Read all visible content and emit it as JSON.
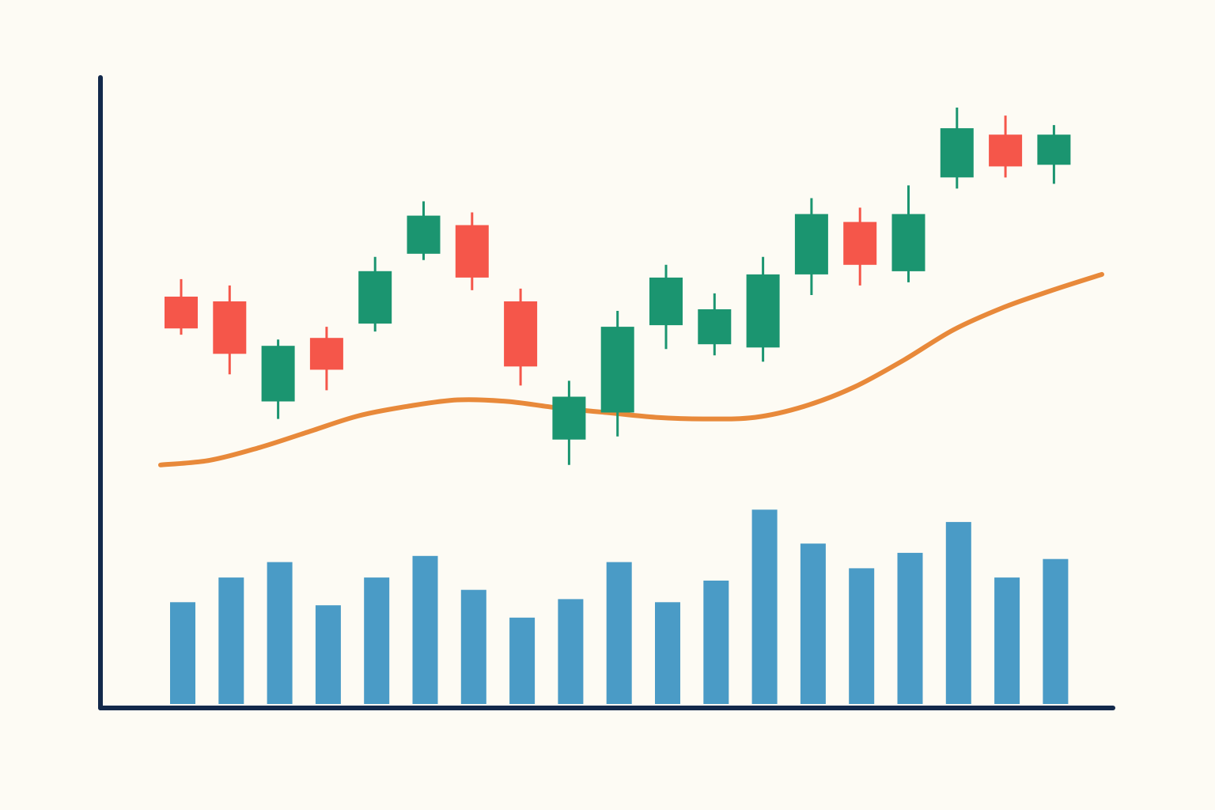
{
  "colors": {
    "background": "#fdfbf4",
    "axis": "#13294b",
    "bullish": "#1b9570",
    "bearish": "#f5564a",
    "moving_average": "#e8893a",
    "volume": "#4a9bc6"
  },
  "chart_data": {
    "type": "candlestick",
    "title": "",
    "xlabel": "",
    "ylabel": "",
    "ylim": [
      0,
      100
    ],
    "grid": false,
    "legend": "none",
    "tick_labels": false,
    "candles": [
      {
        "open": 65.0,
        "close": 55.0,
        "high": 70.5,
        "low": 53.0
      },
      {
        "open": 63.5,
        "close": 47.0,
        "high": 68.5,
        "low": 40.5
      },
      {
        "open": 32.0,
        "close": 49.5,
        "high": 51.5,
        "low": 26.5
      },
      {
        "open": 52.0,
        "close": 42.0,
        "high": 55.5,
        "low": 35.5
      },
      {
        "open": 56.5,
        "close": 73.0,
        "high": 77.5,
        "low": 54.0
      },
      {
        "open": 78.5,
        "close": 90.5,
        "high": 95.0,
        "low": 76.5
      },
      {
        "open": 87.5,
        "close": 71.0,
        "high": 91.5,
        "low": 67.0
      },
      {
        "open": 63.5,
        "close": 43.0,
        "high": 67.5,
        "low": 37.0
      },
      {
        "open": 20.0,
        "close": 33.5,
        "high": 38.5,
        "low": 12.0
      },
      {
        "open": 28.5,
        "close": 55.5,
        "high": 60.5,
        "low": 21.0
      },
      {
        "open": 56.0,
        "close": 71.0,
        "high": 75.0,
        "low": 48.5
      },
      {
        "open": 50.0,
        "close": 61.0,
        "high": 66.0,
        "low": 46.5
      },
      {
        "open": 49.0,
        "close": 72.0,
        "high": 77.5,
        "low": 44.5
      },
      {
        "open": 72.0,
        "close": 91.0,
        "high": 96.0,
        "low": 65.5
      },
      {
        "open": 88.5,
        "close": 75.0,
        "high": 93.0,
        "low": 68.5
      },
      {
        "open": 73.0,
        "close": 91.0,
        "high": 100.0,
        "low": 69.5
      },
      {
        "open": 102.5,
        "close": 118.0,
        "high": 124.5,
        "low": 99.0
      },
      {
        "open": 116.0,
        "close": 106.0,
        "high": 122.0,
        "low": 102.5
      },
      {
        "open": 106.5,
        "close": 116.0,
        "high": 119.0,
        "low": 100.5
      }
    ],
    "moving_average": [
      12.0,
      13.5,
      17.5,
      22.5,
      27.5,
      30.5,
      32.5,
      32.0,
      30.0,
      28.5,
      27.0,
      26.5,
      27.0,
      30.5,
      36.5,
      45.0,
      54.5,
      61.5,
      67.0,
      72.0
    ],
    "volume": [
      33,
      41,
      46,
      32,
      41,
      48,
      37,
      28,
      34,
      46,
      33,
      40,
      63,
      52,
      44,
      49,
      59,
      41,
      47
    ]
  }
}
